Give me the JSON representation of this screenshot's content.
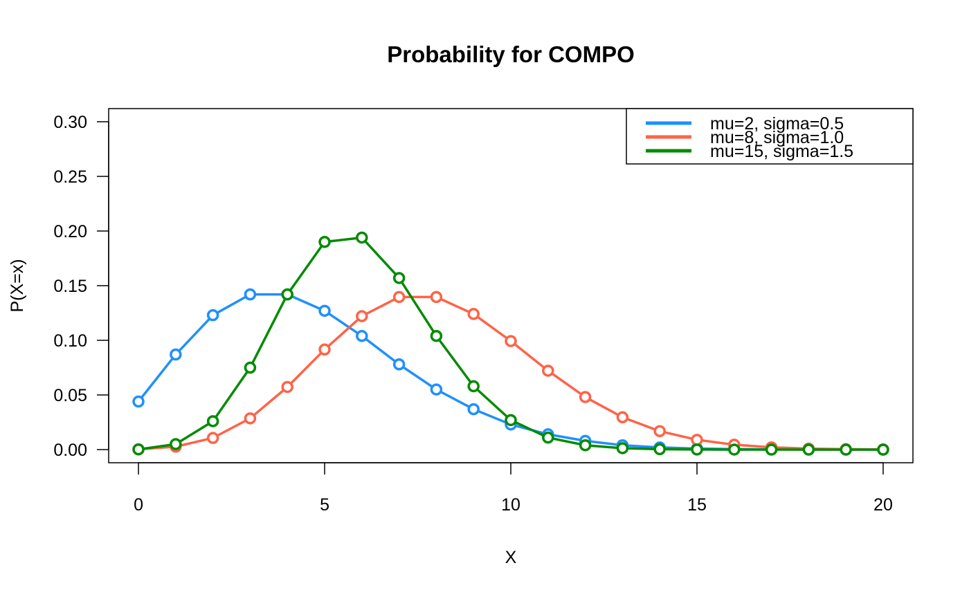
{
  "chart_data": {
    "type": "line",
    "title": "Probability for COMPO",
    "xlabel": "X",
    "ylabel": "P(X=x)",
    "xlim": [
      -0.8,
      20.8
    ],
    "ylim": [
      -0.012,
      0.312
    ],
    "x_ticks": [
      0,
      5,
      10,
      15,
      20
    ],
    "x_tick_labels": [
      "0",
      "5",
      "10",
      "15",
      "20"
    ],
    "y_ticks": [
      0,
      0.05,
      0.1,
      0.15,
      0.2,
      0.25,
      0.3
    ],
    "y_tick_labels": [
      "0.00",
      "0.05",
      "0.10",
      "0.15",
      "0.20",
      "0.25",
      "0.30"
    ],
    "grid": false,
    "legend_position": "top-right",
    "x": [
      0,
      1,
      2,
      3,
      4,
      5,
      6,
      7,
      8,
      9,
      10,
      11,
      12,
      13,
      14,
      15,
      16,
      17,
      18,
      19,
      20
    ],
    "series": [
      {
        "name": "mu=2, sigma=0.5",
        "color": "#1E90FF",
        "values": [
          0.044,
          0.087,
          0.123,
          0.142,
          0.142,
          0.127,
          0.104,
          0.078,
          0.055,
          0.037,
          0.023,
          0.014,
          0.008,
          0.004,
          0.002,
          0.001,
          0.0005,
          0.0002,
          0.0001,
          5e-05,
          2e-05
        ]
      },
      {
        "name": "mu=8, sigma=1.0",
        "color": "#FF6347",
        "values": [
          0.0003,
          0.0027,
          0.0107,
          0.0286,
          0.0573,
          0.0916,
          0.1221,
          0.1396,
          0.1396,
          0.1241,
          0.0993,
          0.0722,
          0.0481,
          0.0296,
          0.0169,
          0.009,
          0.0045,
          0.0021,
          0.0009,
          0.0004,
          0.0002
        ]
      },
      {
        "name": "mu=15, sigma=1.5",
        "color": "#008B00",
        "values": [
          0.0002,
          0.005,
          0.026,
          0.075,
          0.142,
          0.19,
          0.194,
          0.157,
          0.104,
          0.058,
          0.027,
          0.011,
          0.004,
          0.0013,
          0.0004,
          0.0001,
          3e-05,
          1e-05,
          0.0,
          0.0,
          0.0
        ]
      }
    ]
  }
}
